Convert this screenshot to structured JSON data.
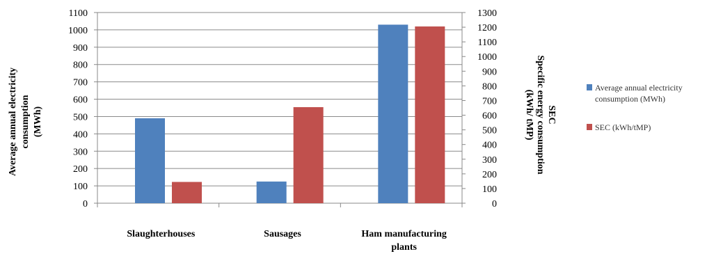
{
  "chart_data": {
    "type": "bar",
    "categories": [
      "Slaughterhouses",
      "Sausages",
      "Ham manufacturing plants"
    ],
    "category_lines": [
      [
        "Slaughterhouses"
      ],
      [
        "Sausages"
      ],
      [
        "Ham manufacturing",
        "plants"
      ]
    ],
    "series": [
      {
        "name": "Average annual electricity consumption (MWh)",
        "legend_lines": [
          "Average annual electricity",
          "consumption (MWh)"
        ],
        "axis": "left",
        "values": [
          490,
          125,
          1030
        ],
        "color": "#4f81bd"
      },
      {
        "name": "SEC (kWh/tMP)",
        "legend_lines": [
          "SEC (kWh/tMP)"
        ],
        "axis": "right",
        "values": [
          145,
          655,
          1205
        ],
        "color": "#c0504d"
      }
    ],
    "ylabel": [
      "Average annual electricity",
      "consumption",
      "(MWh)"
    ],
    "y2label": [
      "SEC",
      "Specific energy consumption",
      "(kWh/ tMP)"
    ],
    "ylim": [
      0,
      1100
    ],
    "y2lim": [
      0,
      1300
    ],
    "yticks": [
      0,
      100,
      200,
      300,
      400,
      500,
      600,
      700,
      800,
      900,
      1000,
      1100
    ],
    "y2ticks": [
      0,
      100,
      200,
      300,
      400,
      500,
      600,
      700,
      800,
      900,
      1000,
      1100,
      1200,
      1300
    ],
    "grid": true,
    "legend_position": "right"
  }
}
